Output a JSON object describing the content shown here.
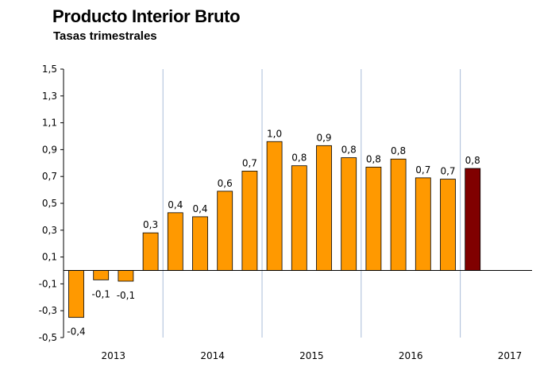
{
  "chart_data": {
    "type": "bar",
    "title": "Producto Interior Bruto",
    "subtitle": "Tasas trimestrales",
    "xlabel": "",
    "ylabel": "",
    "ylim": [
      -0.5,
      1.5
    ],
    "yticks": [
      "1,5",
      "1,3",
      "1,1",
      "0,9",
      "0,7",
      "0,5",
      "0,3",
      "0,1",
      "-0,1",
      "-0,3",
      "-0,5"
    ],
    "ytick_values": [
      1.5,
      1.3,
      1.1,
      0.9,
      0.7,
      0.5,
      0.3,
      0.1,
      -0.1,
      -0.3,
      -0.5
    ],
    "years": [
      "2013",
      "2014",
      "2015",
      "2016",
      "2017"
    ],
    "grid": false,
    "values": [
      -0.35,
      -0.07,
      -0.08,
      0.28,
      0.43,
      0.4,
      0.59,
      0.74,
      0.96,
      0.78,
      0.93,
      0.84,
      0.77,
      0.83,
      0.69,
      0.68,
      0.76
    ],
    "labels": [
      "-0,4",
      "-0,1",
      "-0,1",
      "0,3",
      "0,4",
      "0,4",
      "0,6",
      "0,7",
      "1,0",
      "0,8",
      "0,9",
      "0,8",
      "0,8",
      "0,8",
      "0,7",
      "0,7",
      "0,8"
    ],
    "colors": {
      "bar": "#FF9900",
      "highlight": "#800000",
      "separator": "#A9BCD8"
    },
    "highlight_index": 16
  }
}
